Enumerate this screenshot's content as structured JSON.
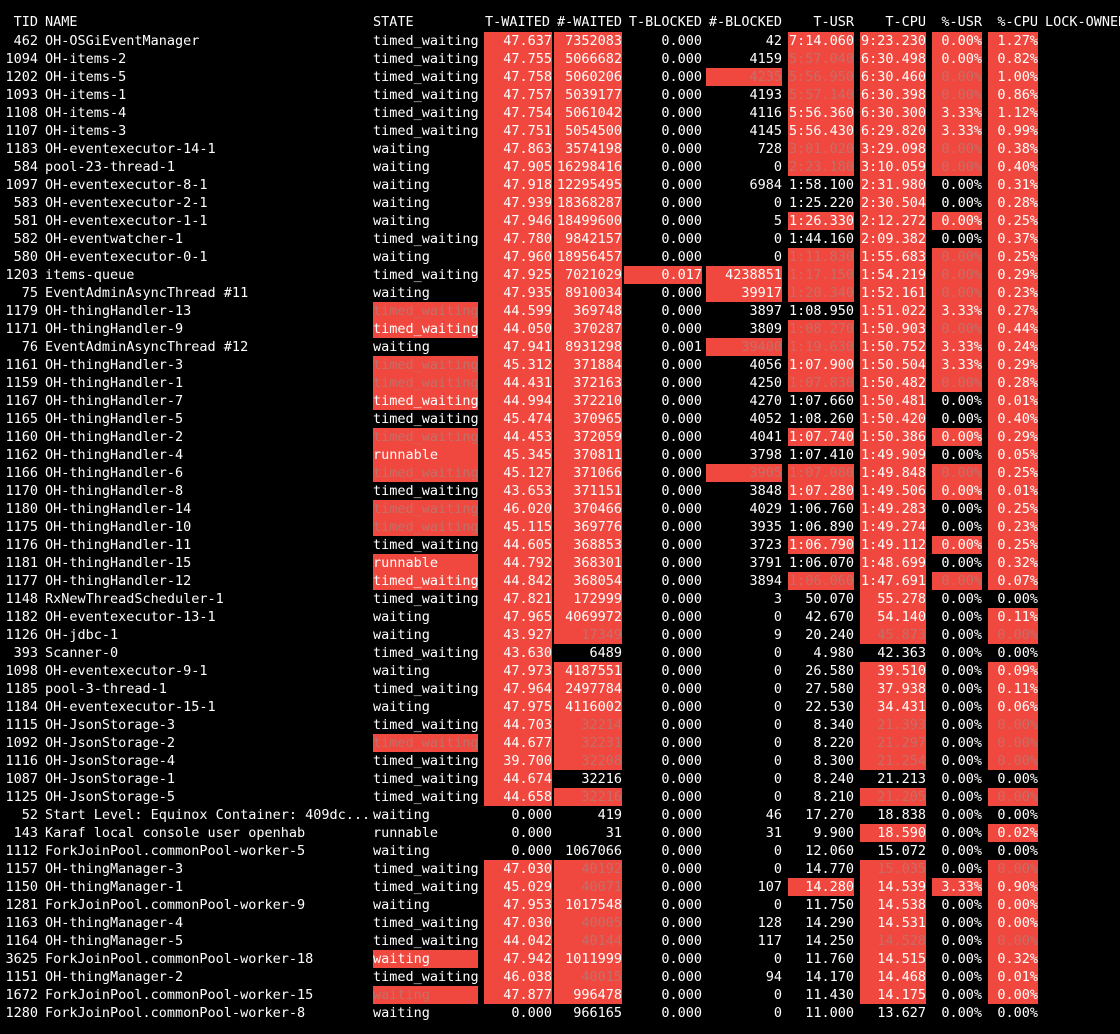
{
  "header": {
    "tid": "TID",
    "name": "NAME",
    "state": "STATE",
    "t_waited": "T-WAITED",
    "n_waited": "#-WAITED",
    "t_blocked": "T-BLOCKED",
    "n_blocked": "#-BLOCKED",
    "t_usr": "T-USR",
    "t_cpu": "T-CPU",
    "p_usr": "%-USR",
    "p_cpu": "%-CPU",
    "lock_owner": "LOCK-OWNER"
  },
  "colors": {
    "highlight": "#f0483e",
    "dim_text": "#c26f6a",
    "background": "#000000",
    "text": "#ffffff"
  },
  "rows": [
    {
      "tid": "462",
      "name": "OH-OSGiEventManager",
      "state": "timed_waiting",
      "t_waited": "47.637",
      "n_waited": "7352083",
      "t_blocked": "0.000",
      "n_blocked": "42",
      "t_usr": "7:14.060",
      "t_cpu": "9:23.230",
      "p_usr": "0.00%",
      "p_cpu": "1.27%"
    },
    {
      "tid": "1094",
      "name": "OH-items-2",
      "state": "timed_waiting",
      "t_waited": "47.755",
      "n_waited": "5066682",
      "t_blocked": "0.000",
      "n_blocked": "4159",
      "t_usr": "5:57.040",
      "t_cpu": "6:30.498",
      "p_usr": "0.00%",
      "p_cpu": "0.82%"
    },
    {
      "tid": "1202",
      "name": "OH-items-5",
      "state": "timed_waiting",
      "t_waited": "47.758",
      "n_waited": "5060206",
      "t_blocked": "0.000",
      "n_blocked": "4235",
      "t_usr": "5:56.950",
      "t_cpu": "6:30.460",
      "p_usr": "0.00%",
      "p_cpu": "1.00%"
    },
    {
      "tid": "1093",
      "name": "OH-items-1",
      "state": "timed_waiting",
      "t_waited": "47.757",
      "n_waited": "5039177",
      "t_blocked": "0.000",
      "n_blocked": "4193",
      "t_usr": "5:57.140",
      "t_cpu": "6:30.398",
      "p_usr": "0.00%",
      "p_cpu": "0.86%"
    },
    {
      "tid": "1108",
      "name": "OH-items-4",
      "state": "timed_waiting",
      "t_waited": "47.754",
      "n_waited": "5061042",
      "t_blocked": "0.000",
      "n_blocked": "4116",
      "t_usr": "5:56.360",
      "t_cpu": "6:30.300",
      "p_usr": "3.33%",
      "p_cpu": "1.12%"
    },
    {
      "tid": "1107",
      "name": "OH-items-3",
      "state": "timed_waiting",
      "t_waited": "47.751",
      "n_waited": "5054500",
      "t_blocked": "0.000",
      "n_blocked": "4145",
      "t_usr": "5:56.430",
      "t_cpu": "6:29.820",
      "p_usr": "3.33%",
      "p_cpu": "0.99%"
    },
    {
      "tid": "1183",
      "name": "OH-eventexecutor-14-1",
      "state": "waiting",
      "t_waited": "47.863",
      "n_waited": "3574198",
      "t_blocked": "0.000",
      "n_blocked": "728",
      "t_usr": "3:01.020",
      "t_cpu": "3:29.098",
      "p_usr": "0.00%",
      "p_cpu": "0.38%"
    },
    {
      "tid": "584",
      "name": "pool-23-thread-1",
      "state": "waiting",
      "t_waited": "47.905",
      "n_waited": "16298416",
      "t_blocked": "0.000",
      "n_blocked": "0",
      "t_usr": "2:23.180",
      "t_cpu": "3:10.059",
      "p_usr": "0.00%",
      "p_cpu": "0.40%"
    },
    {
      "tid": "1097",
      "name": "OH-eventexecutor-8-1",
      "state": "waiting",
      "t_waited": "47.918",
      "n_waited": "12295495",
      "t_blocked": "0.000",
      "n_blocked": "6984",
      "t_usr": "1:58.100",
      "t_cpu": "2:31.980",
      "p_usr": "0.00%",
      "p_cpu": "0.31%"
    },
    {
      "tid": "583",
      "name": "OH-eventexecutor-2-1",
      "state": "waiting",
      "t_waited": "47.939",
      "n_waited": "18368287",
      "t_blocked": "0.000",
      "n_blocked": "0",
      "t_usr": "1:25.220",
      "t_cpu": "2:30.504",
      "p_usr": "0.00%",
      "p_cpu": "0.28%"
    },
    {
      "tid": "581",
      "name": "OH-eventexecutor-1-1",
      "state": "waiting",
      "t_waited": "47.946",
      "n_waited": "18499600",
      "t_blocked": "0.000",
      "n_blocked": "5",
      "t_usr": "1:26.330",
      "t_cpu": "2:12.272",
      "p_usr": "0.00%",
      "p_cpu": "0.25%"
    },
    {
      "tid": "582",
      "name": "OH-eventwatcher-1",
      "state": "timed_waiting",
      "t_waited": "47.780",
      "n_waited": "9842157",
      "t_blocked": "0.000",
      "n_blocked": "0",
      "t_usr": "1:44.160",
      "t_cpu": "2:09.382",
      "p_usr": "0.00%",
      "p_cpu": "0.37%"
    },
    {
      "tid": "580",
      "name": "OH-eventexecutor-0-1",
      "state": "waiting",
      "t_waited": "47.960",
      "n_waited": "18956457",
      "t_blocked": "0.000",
      "n_blocked": "0",
      "t_usr": "1:11.830",
      "t_cpu": "1:55.683",
      "p_usr": "0.00%",
      "p_cpu": "0.25%"
    },
    {
      "tid": "1203",
      "name": "items-queue",
      "state": "timed_waiting",
      "t_waited": "47.925",
      "n_waited": "7021029",
      "t_blocked": "0.017",
      "n_blocked": "4238851",
      "t_usr": "1:17.150",
      "t_cpu": "1:54.219",
      "p_usr": "0.00%",
      "p_cpu": "0.29%"
    },
    {
      "tid": "75",
      "name": "EventAdminAsyncThread #11",
      "state": "waiting",
      "t_waited": "47.935",
      "n_waited": "8910034",
      "t_blocked": "0.000",
      "n_blocked": "39917",
      "t_usr": "1:20.340",
      "t_cpu": "1:52.161",
      "p_usr": "0.00%",
      "p_cpu": "0.23%"
    },
    {
      "tid": "1179",
      "name": "OH-thingHandler-13",
      "state": "timed_waiting",
      "t_waited": "44.599",
      "n_waited": "369748",
      "t_blocked": "0.000",
      "n_blocked": "3897",
      "t_usr": "1:08.950",
      "t_cpu": "1:51.022",
      "p_usr": "3.33%",
      "p_cpu": "0.27%"
    },
    {
      "tid": "1171",
      "name": "OH-thingHandler-9",
      "state": "timed_waiting",
      "t_waited": "44.050",
      "n_waited": "370287",
      "t_blocked": "0.000",
      "n_blocked": "3809",
      "t_usr": "1:08.270",
      "t_cpu": "1:50.903",
      "p_usr": "0.00%",
      "p_cpu": "0.44%"
    },
    {
      "tid": "76",
      "name": "EventAdminAsyncThread #12",
      "state": "waiting",
      "t_waited": "47.941",
      "n_waited": "8931298",
      "t_blocked": "0.001",
      "n_blocked": "39400",
      "t_usr": "1:19.630",
      "t_cpu": "1:50.752",
      "p_usr": "3.33%",
      "p_cpu": "0.24%"
    },
    {
      "tid": "1161",
      "name": "OH-thingHandler-3",
      "state": "timed_waiting",
      "t_waited": "45.312",
      "n_waited": "371884",
      "t_blocked": "0.000",
      "n_blocked": "4056",
      "t_usr": "1:07.900",
      "t_cpu": "1:50.504",
      "p_usr": "3.33%",
      "p_cpu": "0.29%"
    },
    {
      "tid": "1159",
      "name": "OH-thingHandler-1",
      "state": "timed_waiting",
      "t_waited": "44.431",
      "n_waited": "372163",
      "t_blocked": "0.000",
      "n_blocked": "4250",
      "t_usr": "1:07.830",
      "t_cpu": "1:50.482",
      "p_usr": "0.00%",
      "p_cpu": "0.28%"
    },
    {
      "tid": "1167",
      "name": "OH-thingHandler-7",
      "state": "timed_waiting",
      "t_waited": "44.994",
      "n_waited": "372210",
      "t_blocked": "0.000",
      "n_blocked": "4270",
      "t_usr": "1:07.660",
      "t_cpu": "1:50.481",
      "p_usr": "0.00%",
      "p_cpu": "0.01%"
    },
    {
      "tid": "1165",
      "name": "OH-thingHandler-5",
      "state": "timed_waiting",
      "t_waited": "45.474",
      "n_waited": "370965",
      "t_blocked": "0.000",
      "n_blocked": "4052",
      "t_usr": "1:08.260",
      "t_cpu": "1:50.420",
      "p_usr": "0.00%",
      "p_cpu": "0.40%"
    },
    {
      "tid": "1160",
      "name": "OH-thingHandler-2",
      "state": "timed_waiting",
      "t_waited": "44.453",
      "n_waited": "372059",
      "t_blocked": "0.000",
      "n_blocked": "4041",
      "t_usr": "1:07.740",
      "t_cpu": "1:50.386",
      "p_usr": "0.00%",
      "p_cpu": "0.29%"
    },
    {
      "tid": "1162",
      "name": "OH-thingHandler-4",
      "state": "runnable",
      "t_waited": "45.345",
      "n_waited": "370811",
      "t_blocked": "0.000",
      "n_blocked": "3798",
      "t_usr": "1:07.410",
      "t_cpu": "1:49.909",
      "p_usr": "0.00%",
      "p_cpu": "0.05%"
    },
    {
      "tid": "1166",
      "name": "OH-thingHandler-6",
      "state": "timed_waiting",
      "t_waited": "45.127",
      "n_waited": "371066",
      "t_blocked": "0.000",
      "n_blocked": "3905",
      "t_usr": "1:07.080",
      "t_cpu": "1:49.848",
      "p_usr": "0.00%",
      "p_cpu": "0.25%"
    },
    {
      "tid": "1170",
      "name": "OH-thingHandler-8",
      "state": "timed_waiting",
      "t_waited": "43.653",
      "n_waited": "371151",
      "t_blocked": "0.000",
      "n_blocked": "3848",
      "t_usr": "1:07.280",
      "t_cpu": "1:49.506",
      "p_usr": "0.00%",
      "p_cpu": "0.01%"
    },
    {
      "tid": "1180",
      "name": "OH-thingHandler-14",
      "state": "timed_waiting",
      "t_waited": "46.020",
      "n_waited": "370466",
      "t_blocked": "0.000",
      "n_blocked": "4029",
      "t_usr": "1:06.760",
      "t_cpu": "1:49.283",
      "p_usr": "0.00%",
      "p_cpu": "0.25%"
    },
    {
      "tid": "1175",
      "name": "OH-thingHandler-10",
      "state": "timed_waiting",
      "t_waited": "45.115",
      "n_waited": "369776",
      "t_blocked": "0.000",
      "n_blocked": "3935",
      "t_usr": "1:06.890",
      "t_cpu": "1:49.274",
      "p_usr": "0.00%",
      "p_cpu": "0.23%"
    },
    {
      "tid": "1176",
      "name": "OH-thingHandler-11",
      "state": "timed_waiting",
      "t_waited": "44.605",
      "n_waited": "368853",
      "t_blocked": "0.000",
      "n_blocked": "3723",
      "t_usr": "1:06.790",
      "t_cpu": "1:49.112",
      "p_usr": "0.00%",
      "p_cpu": "0.25%"
    },
    {
      "tid": "1181",
      "name": "OH-thingHandler-15",
      "state": "runnable",
      "t_waited": "44.792",
      "n_waited": "368301",
      "t_blocked": "0.000",
      "n_blocked": "3791",
      "t_usr": "1:06.070",
      "t_cpu": "1:48.699",
      "p_usr": "0.00%",
      "p_cpu": "0.32%"
    },
    {
      "tid": "1177",
      "name": "OH-thingHandler-12",
      "state": "timed_waiting",
      "t_waited": "44.842",
      "n_waited": "368054",
      "t_blocked": "0.000",
      "n_blocked": "3894",
      "t_usr": "1:06.060",
      "t_cpu": "1:47.691",
      "p_usr": "0.00%",
      "p_cpu": "0.07%"
    },
    {
      "tid": "1148",
      "name": "RxNewThreadScheduler-1",
      "state": "timed_waiting",
      "t_waited": "47.821",
      "n_waited": "172999",
      "t_blocked": "0.000",
      "n_blocked": "3",
      "t_usr": "50.070",
      "t_cpu": "55.278",
      "p_usr": "0.00%",
      "p_cpu": "0.00%"
    },
    {
      "tid": "1182",
      "name": "OH-eventexecutor-13-1",
      "state": "waiting",
      "t_waited": "47.965",
      "n_waited": "4069972",
      "t_blocked": "0.000",
      "n_blocked": "0",
      "t_usr": "42.670",
      "t_cpu": "54.140",
      "p_usr": "0.00%",
      "p_cpu": "0.11%"
    },
    {
      "tid": "1126",
      "name": "OH-jdbc-1",
      "state": "waiting",
      "t_waited": "43.927",
      "n_waited": "17349",
      "t_blocked": "0.000",
      "n_blocked": "9",
      "t_usr": "20.240",
      "t_cpu": "45.873",
      "p_usr": "0.00%",
      "p_cpu": "0.00%"
    },
    {
      "tid": "393",
      "name": "Scanner-0",
      "state": "timed_waiting",
      "t_waited": "43.630",
      "n_waited": "6489",
      "t_blocked": "0.000",
      "n_blocked": "0",
      "t_usr": "4.980",
      "t_cpu": "42.363",
      "p_usr": "0.00%",
      "p_cpu": "0.00%"
    },
    {
      "tid": "1098",
      "name": "OH-eventexecutor-9-1",
      "state": "waiting",
      "t_waited": "47.973",
      "n_waited": "4187551",
      "t_blocked": "0.000",
      "n_blocked": "0",
      "t_usr": "26.580",
      "t_cpu": "39.510",
      "p_usr": "0.00%",
      "p_cpu": "0.09%"
    },
    {
      "tid": "1185",
      "name": "pool-3-thread-1",
      "state": "timed_waiting",
      "t_waited": "47.964",
      "n_waited": "2497784",
      "t_blocked": "0.000",
      "n_blocked": "0",
      "t_usr": "27.580",
      "t_cpu": "37.938",
      "p_usr": "0.00%",
      "p_cpu": "0.11%"
    },
    {
      "tid": "1184",
      "name": "OH-eventexecutor-15-1",
      "state": "waiting",
      "t_waited": "47.975",
      "n_waited": "4116002",
      "t_blocked": "0.000",
      "n_blocked": "0",
      "t_usr": "22.530",
      "t_cpu": "34.431",
      "p_usr": "0.00%",
      "p_cpu": "0.06%"
    },
    {
      "tid": "1115",
      "name": "OH-JsonStorage-3",
      "state": "timed_waiting",
      "t_waited": "44.703",
      "n_waited": "32214",
      "t_blocked": "0.000",
      "n_blocked": "0",
      "t_usr": "8.340",
      "t_cpu": "21.393",
      "p_usr": "0.00%",
      "p_cpu": "0.00%"
    },
    {
      "tid": "1092",
      "name": "OH-JsonStorage-2",
      "state": "timed_waiting",
      "t_waited": "44.677",
      "n_waited": "32231",
      "t_blocked": "0.000",
      "n_blocked": "0",
      "t_usr": "8.220",
      "t_cpu": "21.297",
      "p_usr": "0.00%",
      "p_cpu": "0.00%"
    },
    {
      "tid": "1116",
      "name": "OH-JsonStorage-4",
      "state": "timed_waiting",
      "t_waited": "39.700",
      "n_waited": "32208",
      "t_blocked": "0.000",
      "n_blocked": "0",
      "t_usr": "8.300",
      "t_cpu": "21.254",
      "p_usr": "0.00%",
      "p_cpu": "0.00%"
    },
    {
      "tid": "1087",
      "name": "OH-JsonStorage-1",
      "state": "timed_waiting",
      "t_waited": "44.674",
      "n_waited": "32216",
      "t_blocked": "0.000",
      "n_blocked": "0",
      "t_usr": "8.240",
      "t_cpu": "21.213",
      "p_usr": "0.00%",
      "p_cpu": "0.00%"
    },
    {
      "tid": "1125",
      "name": "OH-JsonStorage-5",
      "state": "timed_waiting",
      "t_waited": "44.658",
      "n_waited": "32216",
      "t_blocked": "0.000",
      "n_blocked": "0",
      "t_usr": "8.210",
      "t_cpu": "21.205",
      "p_usr": "0.00%",
      "p_cpu": "0.00%"
    },
    {
      "tid": "52",
      "name": "Start Level: Equinox Container: 409dc...",
      "state": "waiting",
      "t_waited": "0.000",
      "n_waited": "419",
      "t_blocked": "0.000",
      "n_blocked": "46",
      "t_usr": "17.270",
      "t_cpu": "18.838",
      "p_usr": "0.00%",
      "p_cpu": "0.00%"
    },
    {
      "tid": "143",
      "name": "Karaf local console user openhab",
      "state": "runnable",
      "t_waited": "0.000",
      "n_waited": "31",
      "t_blocked": "0.000",
      "n_blocked": "31",
      "t_usr": "9.900",
      "t_cpu": "18.590",
      "p_usr": "0.00%",
      "p_cpu": "0.02%"
    },
    {
      "tid": "1112",
      "name": "ForkJoinPool.commonPool-worker-5",
      "state": "waiting",
      "t_waited": "0.000",
      "n_waited": "1067066",
      "t_blocked": "0.000",
      "n_blocked": "0",
      "t_usr": "12.060",
      "t_cpu": "15.072",
      "p_usr": "0.00%",
      "p_cpu": "0.00%"
    },
    {
      "tid": "1157",
      "name": "OH-thingManager-3",
      "state": "timed_waiting",
      "t_waited": "47.030",
      "n_waited": "40192",
      "t_blocked": "0.000",
      "n_blocked": "0",
      "t_usr": "14.770",
      "t_cpu": "15.035",
      "p_usr": "0.00%",
      "p_cpu": "0.00%"
    },
    {
      "tid": "1150",
      "name": "OH-thingManager-1",
      "state": "timed_waiting",
      "t_waited": "45.029",
      "n_waited": "40071",
      "t_blocked": "0.000",
      "n_blocked": "107",
      "t_usr": "14.280",
      "t_cpu": "14.539",
      "p_usr": "3.33%",
      "p_cpu": "0.90%"
    },
    {
      "tid": "1281",
      "name": "ForkJoinPool.commonPool-worker-9",
      "state": "waiting",
      "t_waited": "47.953",
      "n_waited": "1017548",
      "t_blocked": "0.000",
      "n_blocked": "0",
      "t_usr": "11.750",
      "t_cpu": "14.538",
      "p_usr": "0.00%",
      "p_cpu": "0.00%"
    },
    {
      "tid": "1163",
      "name": "OH-thingManager-4",
      "state": "timed_waiting",
      "t_waited": "47.030",
      "n_waited": "40005",
      "t_blocked": "0.000",
      "n_blocked": "128",
      "t_usr": "14.290",
      "t_cpu": "14.531",
      "p_usr": "0.00%",
      "p_cpu": "0.00%"
    },
    {
      "tid": "1164",
      "name": "OH-thingManager-5",
      "state": "timed_waiting",
      "t_waited": "44.042",
      "n_waited": "40144",
      "t_blocked": "0.000",
      "n_blocked": "117",
      "t_usr": "14.250",
      "t_cpu": "14.528",
      "p_usr": "0.00%",
      "p_cpu": "0.00%"
    },
    {
      "tid": "3625",
      "name": "ForkJoinPool.commonPool-worker-18",
      "state": "waiting",
      "t_waited": "47.942",
      "n_waited": "1011999",
      "t_blocked": "0.000",
      "n_blocked": "0",
      "t_usr": "11.760",
      "t_cpu": "14.515",
      "p_usr": "0.00%",
      "p_cpu": "0.32%"
    },
    {
      "tid": "1151",
      "name": "OH-thingManager-2",
      "state": "timed_waiting",
      "t_waited": "46.038",
      "n_waited": "40015",
      "t_blocked": "0.000",
      "n_blocked": "94",
      "t_usr": "14.170",
      "t_cpu": "14.468",
      "p_usr": "0.00%",
      "p_cpu": "0.01%"
    },
    {
      "tid": "1672",
      "name": "ForkJoinPool.commonPool-worker-15",
      "state": "waiting",
      "t_waited": "47.877",
      "n_waited": "996478",
      "t_blocked": "0.000",
      "n_blocked": "0",
      "t_usr": "11.430",
      "t_cpu": "14.175",
      "p_usr": "0.00%",
      "p_cpu": "0.00%"
    },
    {
      "tid": "1280",
      "name": "ForkJoinPool.commonPool-worker-8",
      "state": "waiting",
      "t_waited": "0.000",
      "n_waited": "966165",
      "t_blocked": "0.000",
      "n_blocked": "0",
      "t_usr": "11.000",
      "t_cpu": "13.627",
      "p_usr": "0.00%",
      "p_cpu": "0.00%"
    }
  ]
}
